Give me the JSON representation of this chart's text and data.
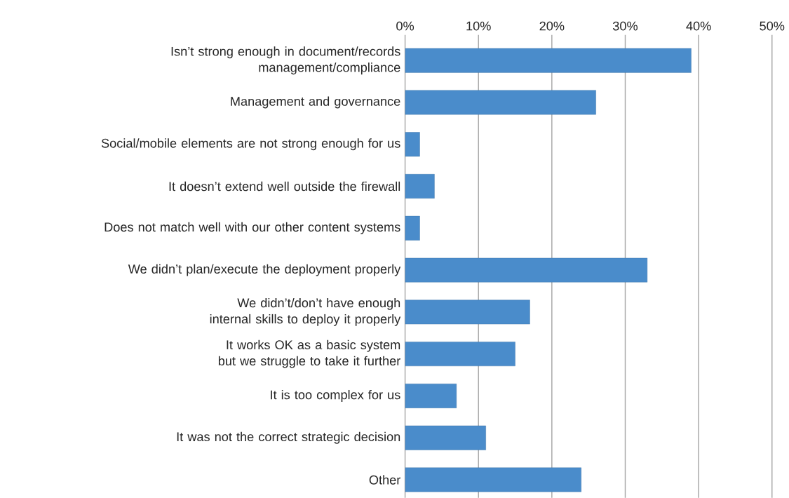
{
  "chart_data": {
    "type": "bar",
    "orientation": "horizontal",
    "categories": [
      "Isn’t strong enough in document/records management/compliance",
      "Management and governance",
      "Social/mobile elements are not strong enough for us",
      "It doesn’t extend well outside the firewall",
      "Does not match well with our other content systems",
      "We didn’t plan/execute the deployment properly",
      "We didn’t/don’t have enough internal skills to deploy it properly",
      "It works OK as a basic system but we struggle to take it further",
      "It is too complex for us",
      "It was not the correct strategic decision",
      "Other"
    ],
    "values": [
      39,
      26,
      2,
      4,
      2,
      33,
      17,
      15,
      7,
      11,
      24
    ],
    "color": "#4a8ccb",
    "xlim": [
      0,
      50
    ],
    "xticks": [
      {
        "value": 0,
        "label": "0%"
      },
      {
        "value": 10,
        "label": "10%"
      },
      {
        "value": 20,
        "label": "20%"
      },
      {
        "value": 30,
        "label": "30%"
      },
      {
        "value": 40,
        "label": "40%"
      },
      {
        "value": 50,
        "label": "50%"
      }
    ],
    "grid": "x"
  }
}
